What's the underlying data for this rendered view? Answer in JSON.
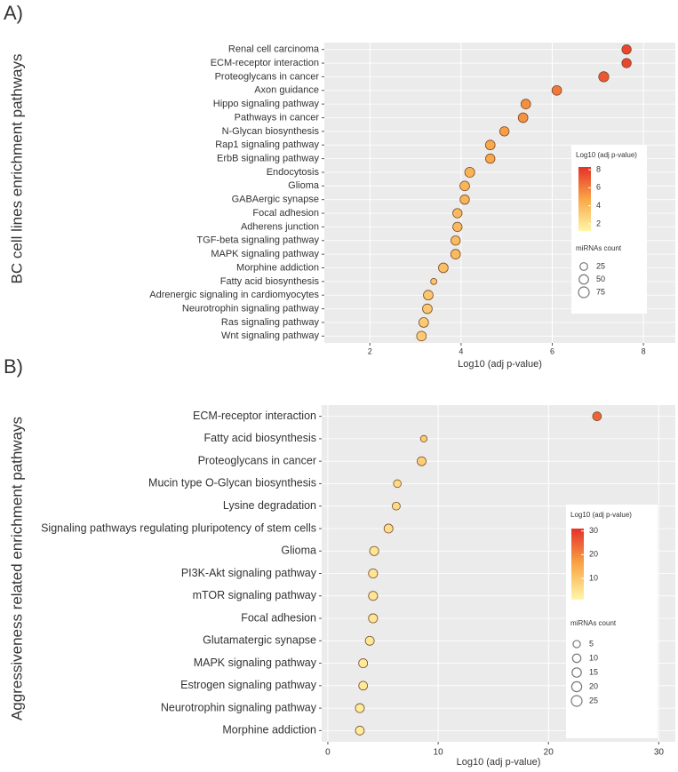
{
  "chart_data": [
    {
      "type": "scatter",
      "panel_label": "A)",
      "y_label": "BC cell lines enrichment pathways",
      "x_label": "Log10 (adj p-value)",
      "categories": [
        "Renal cell carcinoma",
        "ECM-receptor interaction",
        "Proteoglycans in cancer",
        "Axon guidance",
        "Hippo signaling pathway",
        "Pathways in cancer",
        "N-Glycan biosynthesis",
        "Rap1 signaling pathway",
        "ErbB signaling pathway",
        "Endocytosis",
        "Glioma",
        "GABAergic synapse",
        "Focal adhesion",
        "Adherens junction",
        "TGF-beta signaling pathway",
        "MAPK signaling pathway",
        "Morphine addiction",
        "Fatty acid biosynthesis",
        "Adrenergic signaling in cardiomyocytes",
        "Neurotrophin signaling pathway",
        "Ras signaling pathway",
        "Wnt signaling pathway"
      ],
      "values": [
        7.63,
        7.63,
        7.13,
        6.1,
        5.42,
        5.36,
        4.95,
        4.64,
        4.64,
        4.19,
        4.08,
        4.08,
        3.92,
        3.92,
        3.88,
        3.88,
        3.61,
        3.4,
        3.28,
        3.26,
        3.18,
        3.13
      ],
      "sizes": [
        50,
        50,
        65,
        55,
        55,
        55,
        50,
        55,
        50,
        60,
        55,
        50,
        50,
        50,
        50,
        55,
        55,
        10,
        55,
        55,
        55,
        55
      ],
      "xlim": [
        1,
        8.7
      ],
      "xticks": [
        2,
        4,
        6,
        8
      ],
      "grid": true,
      "color_scale": {
        "title": "Log10 (adj p-value)",
        "lim": [
          1.2,
          8.3
        ],
        "ticks": [
          2,
          4,
          6,
          8
        ],
        "colors": [
          "#fff7a8",
          "#f9a646",
          "#e5302a"
        ]
      },
      "size_legend": {
        "title": "miRNAs count",
        "ticks": [
          25,
          50,
          75
        ]
      }
    },
    {
      "type": "scatter",
      "panel_label": "B)",
      "y_label": "Aggressiveness related enrichment pathways",
      "x_label": "Log10 (adj p-value)",
      "categories": [
        "ECM-receptor interaction",
        "Fatty acid biosynthesis",
        "Proteoglycans in cancer",
        "Mucin type O-Glycan biosynthesis",
        "Lysine degradation",
        "Signaling pathways regulating pluripotency of stem cells",
        "Glioma",
        "PI3K-Akt signaling pathway",
        "mTOR signaling pathway",
        "Focal adhesion",
        "Glutamatergic synapse",
        "MAPK signaling pathway",
        "Estrogen signaling pathway",
        "Neurotrophin signaling pathway",
        "Morphine addiction"
      ],
      "values": [
        24.4,
        8.7,
        8.5,
        6.3,
        6.2,
        5.5,
        4.2,
        4.1,
        4.1,
        4.1,
        3.8,
        3.2,
        3.2,
        2.9,
        2.9
      ],
      "sizes": [
        12,
        3,
        13,
        7,
        8,
        13,
        14,
        14,
        14,
        14,
        13,
        13,
        12,
        13,
        12
      ],
      "xlim": [
        -0.56,
        31.5
      ],
      "xticks": [
        0,
        10,
        20,
        30
      ],
      "grid": true,
      "color_scale": {
        "title": "Log10 (adj p-value)",
        "lim": [
          1,
          31
        ],
        "ticks": [
          10,
          20,
          30
        ],
        "colors": [
          "#fff7a8",
          "#f9a646",
          "#e5302a"
        ]
      },
      "size_legend": {
        "title": "miRNAs count",
        "ticks": [
          5,
          10,
          15,
          20,
          25
        ]
      }
    }
  ]
}
